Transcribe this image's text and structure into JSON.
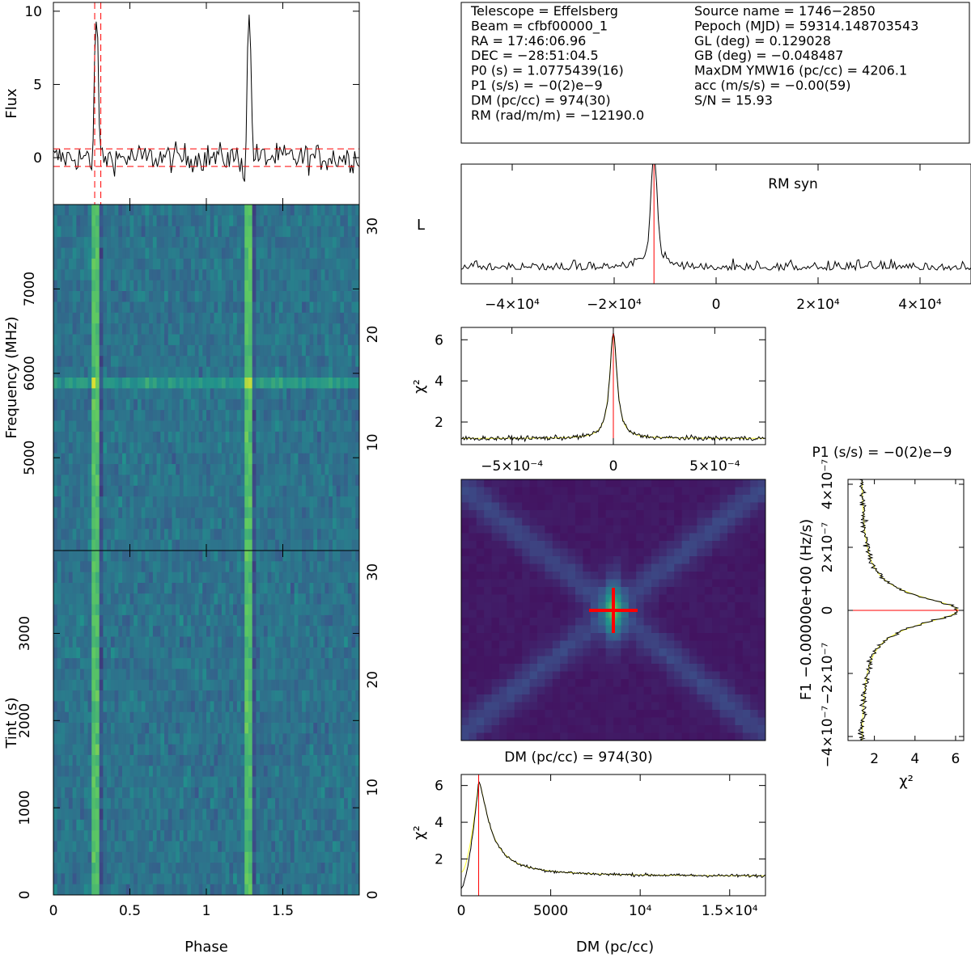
{
  "header": {
    "left": [
      "Telescope = Effelsberg",
      "Beam = cfbf00000_1",
      "RA = 17:46:06.96",
      "DEC = −28:51:04.5",
      "P0 (s) = 1.0775439(16)",
      "P1 (s/s) = −0(2)e−9",
      "DM (pc/cc) = 974(30)",
      "RM (rad/m/m) = −12190.0"
    ],
    "right": [
      "Source name = 1746−2850",
      "Pepoch (MJD) = 59314.148703543",
      "GL (deg) = 0.129028",
      "GB (deg) = −0.048487",
      "MaxDM YMW16  (pc/cc) = 4206.1",
      "acc (m/s/s) = −0.00(59)",
      "S/N = 15.93"
    ]
  },
  "colors": {
    "trace": "#000000",
    "fit": "#ffff33",
    "marker": "#ff0000",
    "colormap": [
      "#440154",
      "#3b528b",
      "#21918c",
      "#5ec962",
      "#fde725"
    ]
  },
  "chart_data": [
    {
      "id": "profile",
      "type": "line",
      "ylabel": "Flux",
      "xlim": [
        0,
        2
      ],
      "ylim": [
        -3.2,
        10.6
      ],
      "yticks": [
        "0",
        "5",
        "10"
      ],
      "series": [
        {
          "pulse_phases": [
            0.28,
            1.28
          ],
          "peak": 10,
          "baseline": 0,
          "noise_rms": 0.7
        }
      ],
      "hlines": [
        0.6,
        -0.6
      ],
      "vlines": [
        0.27,
        0.31
      ]
    },
    {
      "id": "frequency_phase",
      "type": "heatmap",
      "ylabel": "Frequency (MHz)",
      "ylim": [
        3900,
        8000
      ],
      "yticks": [
        "5000",
        "6000",
        "7000"
      ],
      "right_ticks": [
        "10",
        "20",
        "30"
      ],
      "right_lim": [
        0,
        32
      ],
      "pulse_phases": [
        0.28,
        1.28
      ]
    },
    {
      "id": "time_phase",
      "type": "heatmap",
      "xlabel": "Phase",
      "ylabel": "Tint (s)",
      "xticks": [
        "0",
        "0.5",
        "1",
        "1.5"
      ],
      "ylim": [
        0,
        3950
      ],
      "yticks": [
        "0",
        "1000",
        "2000",
        "3000"
      ],
      "right_ticks": [
        "0",
        "10",
        "20",
        "30"
      ],
      "right_lim": [
        0,
        32
      ],
      "pulse_phases": [
        0.28,
        1.28
      ]
    },
    {
      "id": "rm_syn",
      "type": "line",
      "title": "RM syn",
      "ylabel": "L",
      "xlim": [
        -50000,
        50000
      ],
      "xticks": [
        "−4×10⁴",
        "−2×10⁴",
        "0",
        "2×10⁴",
        "4×10⁴"
      ],
      "peak_x": -12190,
      "marker_x": -12190
    },
    {
      "id": "p1_chi2",
      "type": "line",
      "ylabel": "χ²",
      "xlim": [
        -0.00075,
        0.00075
      ],
      "ylim": [
        0.9,
        6.6
      ],
      "xticks": [
        "−5×10⁻⁴",
        "0",
        "5×10⁻⁴"
      ],
      "yticks": [
        "2",
        "4",
        "6"
      ],
      "peak": {
        "x": 0,
        "y": 6.3
      },
      "floor": 1.2
    },
    {
      "id": "dm_p1_map",
      "type": "heatmap",
      "caption": "DM (pc/cc) = 974(30)",
      "marker": "cross"
    },
    {
      "id": "f1_chi2",
      "type": "line",
      "title": "P1 (s/s) = −0(2)e−9",
      "xlabel": "χ²",
      "ylabel": "F1 −0.00000e+00 (Hz/s)",
      "xlim": [
        0.7,
        6.4
      ],
      "xticks": [
        "2",
        "4",
        "6"
      ],
      "yticks": [
        "−4×10⁻⁷",
        "−2×10⁻⁷",
        "0",
        "2×10⁻⁷",
        "4×10⁻⁷"
      ],
      "peak": {
        "x": 6.1,
        "y": 0
      },
      "floor": 1.3
    },
    {
      "id": "dm_chi2",
      "type": "line",
      "xlabel": "DM (pc/cc)",
      "ylabel": "χ²",
      "xlim": [
        0,
        17000
      ],
      "ylim": [
        0,
        6.6
      ],
      "xticks": [
        "0",
        "5000",
        "10⁴",
        "1.5×10⁴"
      ],
      "yticks": [
        "2",
        "4",
        "6"
      ],
      "peak": {
        "x": 974,
        "y": 6.2
      },
      "marker_x": 974,
      "floor": 1.05
    }
  ]
}
